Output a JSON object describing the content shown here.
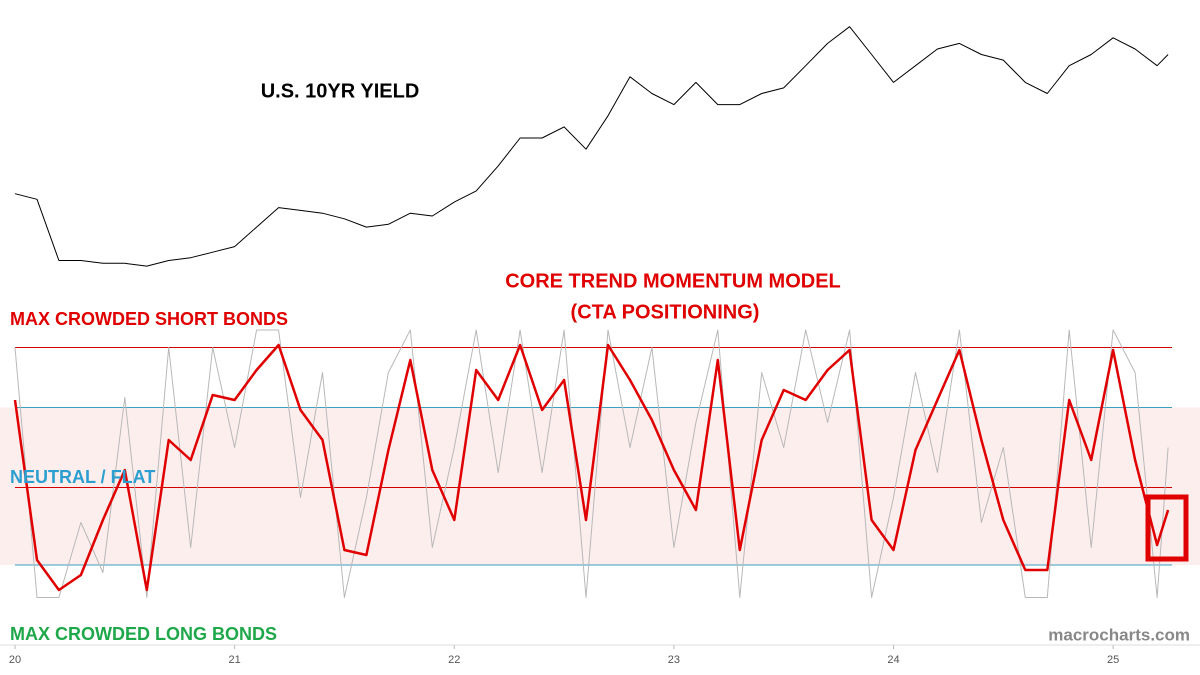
{
  "chart_data": [
    {
      "type": "line",
      "title": "U.S. 10YR YIELD",
      "x": [
        20.0,
        20.1,
        20.2,
        20.3,
        20.4,
        20.5,
        20.6,
        20.7,
        20.8,
        20.9,
        21.0,
        21.1,
        21.2,
        21.3,
        21.4,
        21.5,
        21.6,
        21.7,
        21.8,
        21.9,
        22.0,
        22.1,
        22.2,
        22.3,
        22.4,
        22.5,
        22.6,
        22.7,
        22.8,
        22.9,
        23.0,
        23.1,
        23.2,
        23.3,
        23.4,
        23.5,
        23.6,
        23.7,
        23.8,
        23.9,
        24.0,
        24.1,
        24.2,
        24.3,
        24.4,
        24.5,
        24.6,
        24.7,
        24.8,
        24.9,
        25.0,
        25.1,
        25.2,
        25.25
      ],
      "series": [
        {
          "color": "#000000",
          "values": [
            1.9,
            1.8,
            0.7,
            0.7,
            0.65,
            0.65,
            0.6,
            0.7,
            0.75,
            0.85,
            0.95,
            1.3,
            1.65,
            1.6,
            1.55,
            1.45,
            1.3,
            1.35,
            1.55,
            1.5,
            1.75,
            1.95,
            2.4,
            2.9,
            2.9,
            3.1,
            2.7,
            3.3,
            4.0,
            3.7,
            3.5,
            3.9,
            3.5,
            3.5,
            3.7,
            3.8,
            4.2,
            4.6,
            4.9,
            4.4,
            3.9,
            4.2,
            4.5,
            4.6,
            4.4,
            4.3,
            3.9,
            3.7,
            4.2,
            4.4,
            4.7,
            4.5,
            4.2,
            4.4
          ]
        }
      ],
      "xlim": [
        20,
        25.4
      ],
      "ylim": [
        0.35,
        5.2
      ]
    },
    {
      "type": "line",
      "title": "CORE TREND MOMENTUM MODEL",
      "subtitle": "(CTA POSITIONING)",
      "x": [
        20.0,
        20.1,
        20.2,
        20.3,
        20.4,
        20.5,
        20.6,
        20.7,
        20.8,
        20.9,
        21.0,
        21.1,
        21.2,
        21.3,
        21.4,
        21.5,
        21.6,
        21.7,
        21.8,
        21.9,
        22.0,
        22.1,
        22.2,
        22.3,
        22.4,
        22.5,
        22.6,
        22.7,
        22.8,
        22.9,
        23.0,
        23.1,
        23.2,
        23.3,
        23.4,
        23.5,
        23.6,
        23.7,
        23.8,
        23.9,
        24.0,
        24.1,
        24.2,
        24.3,
        24.4,
        24.5,
        24.6,
        24.7,
        24.8,
        24.9,
        25.0,
        25.1,
        25.2,
        25.25
      ],
      "series": [
        {
          "color": "#b8b8b8",
          "values": [
            100,
            0,
            0,
            30,
            10,
            80,
            0,
            100,
            20,
            100,
            60,
            107,
            107,
            40,
            90,
            0,
            40,
            90,
            107,
            20,
            60,
            107,
            50,
            107,
            50,
            107,
            0,
            107,
            60,
            100,
            20,
            70,
            107,
            0,
            90,
            60,
            107,
            70,
            107,
            0,
            40,
            90,
            50,
            107,
            30,
            60,
            0,
            0,
            107,
            20,
            107,
            90,
            0,
            60
          ]
        },
        {
          "color": "#e00000",
          "values": [
            79,
            15,
            3,
            9,
            31,
            51,
            3,
            63,
            55,
            81,
            79,
            91,
            101,
            75,
            63,
            19,
            17,
            59,
            95,
            51,
            31,
            91,
            79,
            101,
            75,
            87,
            31,
            101,
            87,
            71,
            51,
            35,
            95,
            19,
            63,
            83,
            79,
            91,
            99,
            31,
            19,
            59,
            79,
            99,
            63,
            31,
            11,
            11,
            79,
            55,
            99,
            55,
            21,
            35
          ]
        }
      ],
      "reference_lines": [
        {
          "value": 100,
          "color": "#d40000"
        },
        {
          "value": 76,
          "color": "#3a9fc0"
        },
        {
          "value": 44,
          "color": "#d40000"
        },
        {
          "value": 13,
          "color": "#3a9fc0"
        }
      ],
      "band": [
        13,
        76
      ],
      "band_color": "#fdeeee",
      "annotations": [
        {
          "text": "MAX CROWDED SHORT BONDS",
          "color": "#e00000"
        },
        {
          "text": "NEUTRAL / FLAT",
          "color": "#2a9fd0"
        },
        {
          "text": "MAX CROWDED LONG BONDS",
          "color": "#1fa84a"
        }
      ],
      "xlim": [
        20,
        25.4
      ],
      "ylim": [
        -3,
        107
      ],
      "xticks": [
        20,
        21,
        22,
        23,
        24,
        25
      ]
    }
  ],
  "watermark": "macrocharts.com"
}
